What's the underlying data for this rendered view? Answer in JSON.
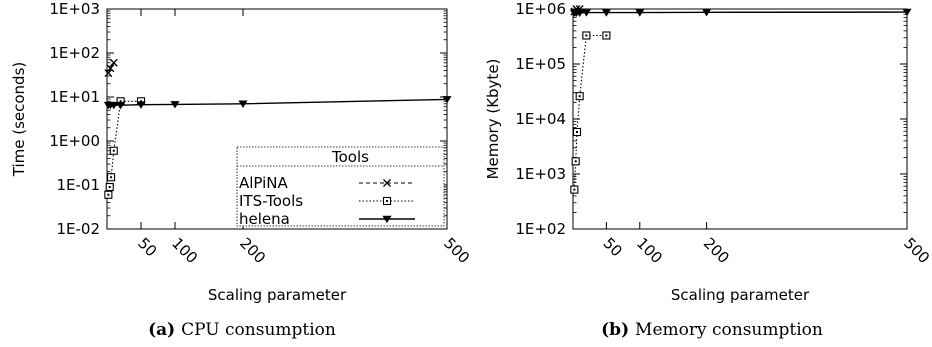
{
  "chart_data": [
    {
      "type": "line",
      "caption_prefix": "(a)",
      "caption_text": "CPU consumption",
      "xlabel": "Scaling parameter",
      "ylabel": "Time (seconds)",
      "x_ticks": [
        50,
        100,
        200,
        500
      ],
      "x_tick_labels": [
        "50",
        "100",
        "200",
        "500"
      ],
      "xlim": [
        0,
        500
      ],
      "ylim": [
        0.01,
        1000
      ],
      "y_scale": "log",
      "y_ticks": [
        0.01,
        0.1,
        1,
        10,
        100,
        1000
      ],
      "y_tick_labels": [
        "1E-02",
        "1E-01",
        "1E+00",
        "1E+01",
        "1E+02",
        "1E+03"
      ],
      "grid": false,
      "legend": {
        "title": "Tools",
        "placement": "bottom-right"
      },
      "series": [
        {
          "name": "AlPiNA",
          "marker": "x",
          "dash": "dashed",
          "x": [
            2,
            5,
            10
          ],
          "y": [
            35,
            45,
            60
          ]
        },
        {
          "name": "ITS-Tools",
          "marker": "square",
          "dash": "dotted",
          "x": [
            2,
            4,
            6,
            10,
            20,
            50
          ],
          "y": [
            0.06,
            0.09,
            0.15,
            0.6,
            8,
            8
          ]
        },
        {
          "name": "helena",
          "marker": "triangle",
          "dash": "solid",
          "x": [
            2,
            5,
            10,
            20,
            50,
            100,
            200,
            500
          ],
          "y": [
            6.5,
            6.5,
            6.5,
            6.5,
            6.7,
            6.8,
            7.0,
            8.8
          ]
        }
      ]
    },
    {
      "type": "line",
      "caption_prefix": "(b)",
      "caption_text": "Memory consumption",
      "xlabel": "Scaling parameter",
      "ylabel": "Memory (Kbyte)",
      "x_ticks": [
        50,
        100,
        200,
        500
      ],
      "x_tick_labels": [
        "50",
        "100",
        "200",
        "500"
      ],
      "xlim": [
        0,
        500
      ],
      "ylim": [
        100,
        1000000
      ],
      "y_scale": "log",
      "y_ticks": [
        100,
        1000,
        10000,
        100000,
        1000000
      ],
      "y_tick_labels": [
        "1E+02",
        "1E+03",
        "1E+04",
        "1E+05",
        "1E+06"
      ],
      "grid": false,
      "series": [
        {
          "name": "AlPiNA",
          "marker": "x",
          "dash": "dashed",
          "x": [
            2,
            5,
            10
          ],
          "y": [
            900000,
            1000000,
            1000000
          ]
        },
        {
          "name": "ITS-Tools",
          "marker": "square",
          "dash": "dotted",
          "x": [
            2,
            4,
            6,
            10,
            20,
            50
          ],
          "y": [
            520,
            1700,
            5800,
            26000,
            330000,
            330000
          ]
        },
        {
          "name": "helena",
          "marker": "triangle",
          "dash": "solid",
          "x": [
            2,
            5,
            10,
            20,
            50,
            100,
            200,
            500
          ],
          "y": [
            850000,
            850000,
            850000,
            860000,
            860000,
            860000,
            870000,
            880000
          ]
        }
      ]
    }
  ]
}
